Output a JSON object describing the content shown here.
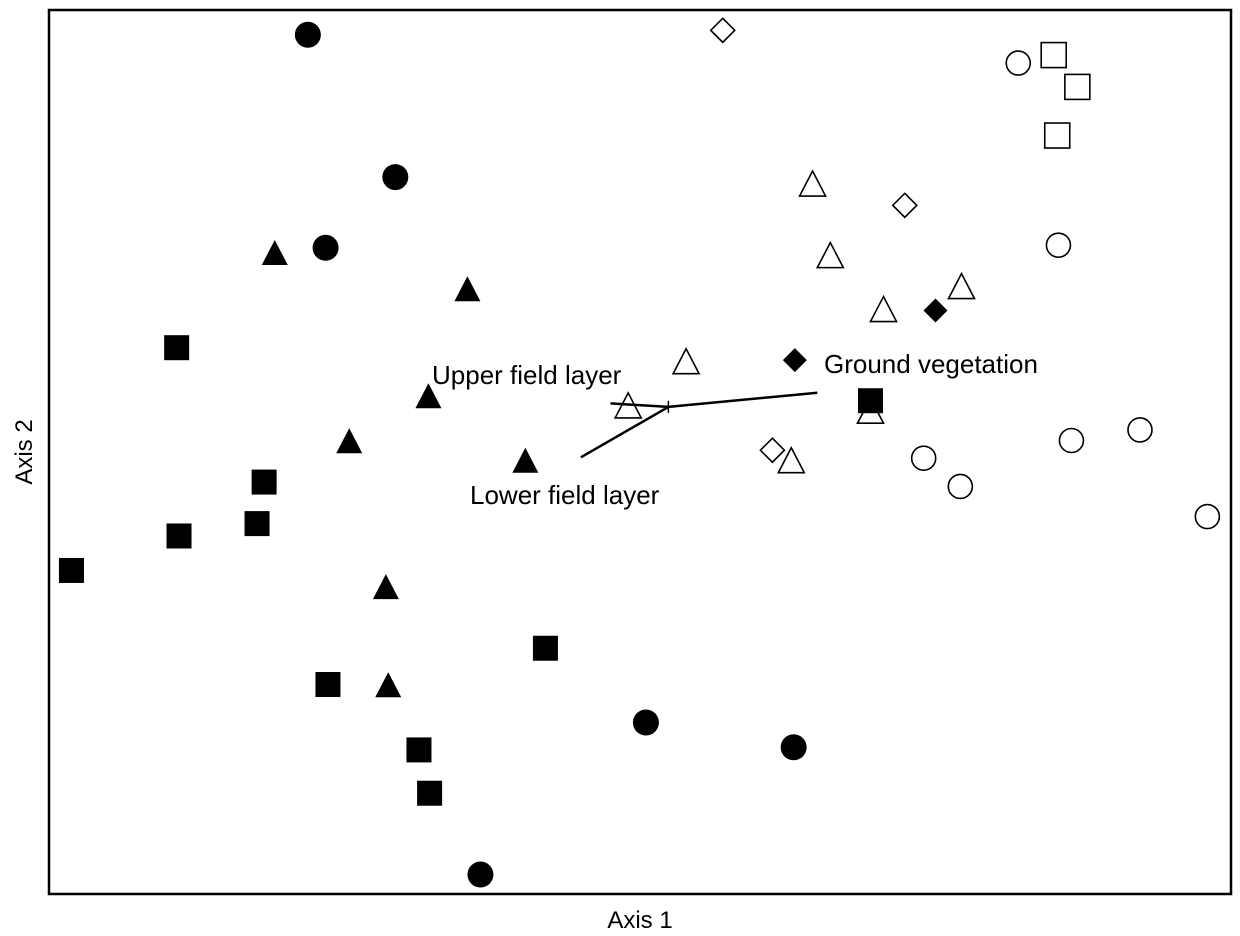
{
  "chart_data": {
    "type": "scatter",
    "title": "",
    "xlabel": "Axis 1",
    "ylabel": "Axis 2",
    "xlim": [
      0,
      100
    ],
    "ylim": [
      0,
      100
    ],
    "grid": false,
    "legend": "none",
    "series": [
      {
        "marker": "circle",
        "filled": true,
        "points": [
          [
            21.9,
            97.2
          ],
          [
            29.3,
            81.1
          ],
          [
            23.4,
            73.1
          ],
          [
            50.5,
            19.4
          ],
          [
            63.0,
            16.6
          ],
          [
            36.5,
            2.2
          ]
        ]
      },
      {
        "marker": "triangle",
        "filled": true,
        "points": [
          [
            19.1,
            72.4
          ],
          [
            35.4,
            68.3
          ],
          [
            32.1,
            56.2
          ],
          [
            25.4,
            51.1
          ],
          [
            40.3,
            48.9
          ],
          [
            28.5,
            34.6
          ],
          [
            28.7,
            23.5
          ]
        ]
      },
      {
        "marker": "square",
        "filled": true,
        "points": [
          [
            10.8,
            61.8
          ],
          [
            18.2,
            46.6
          ],
          [
            11.0,
            40.5
          ],
          [
            17.6,
            41.9
          ],
          [
            1.9,
            36.6
          ],
          [
            42.0,
            27.8
          ],
          [
            23.6,
            23.7
          ],
          [
            31.3,
            16.3
          ],
          [
            32.2,
            11.4
          ],
          [
            69.5,
            55.8
          ]
        ]
      },
      {
        "marker": "diamond",
        "filled": true,
        "points": [
          [
            63.1,
            60.4
          ],
          [
            75.0,
            66.0
          ]
        ]
      },
      {
        "marker": "diamond",
        "filled": false,
        "points": [
          [
            57.0,
            97.7
          ],
          [
            72.4,
            77.9
          ],
          [
            61.2,
            50.2
          ]
        ]
      },
      {
        "marker": "triangle",
        "filled": false,
        "points": [
          [
            64.6,
            80.2
          ],
          [
            66.1,
            72.1
          ],
          [
            70.6,
            66.0
          ],
          [
            77.2,
            68.6
          ],
          [
            53.9,
            60.1
          ],
          [
            49.0,
            55.1
          ],
          [
            69.5,
            54.5
          ],
          [
            62.8,
            48.9
          ]
        ]
      },
      {
        "marker": "circle",
        "filled": false,
        "points": [
          [
            82.0,
            94.0
          ],
          [
            85.4,
            73.4
          ],
          [
            74.0,
            49.3
          ],
          [
            77.1,
            46.1
          ],
          [
            86.5,
            51.3
          ],
          [
            92.3,
            52.5
          ],
          [
            98.0,
            42.7
          ]
        ]
      },
      {
        "marker": "square",
        "filled": false,
        "points": [
          [
            85.0,
            94.9
          ],
          [
            87.0,
            91.3
          ],
          [
            85.3,
            85.8
          ]
        ]
      }
    ],
    "vectors": [
      {
        "label": "Ground vegetation",
        "from": [
          52.4,
          55.1
        ],
        "to": [
          65.0,
          56.7
        ]
      },
      {
        "label": "Upper field layer",
        "from": [
          52.4,
          55.1
        ],
        "to": [
          47.5,
          55.5
        ]
      },
      {
        "label": "Lower field layer",
        "from": [
          52.4,
          55.1
        ],
        "to": [
          45.0,
          49.4
        ]
      }
    ]
  }
}
